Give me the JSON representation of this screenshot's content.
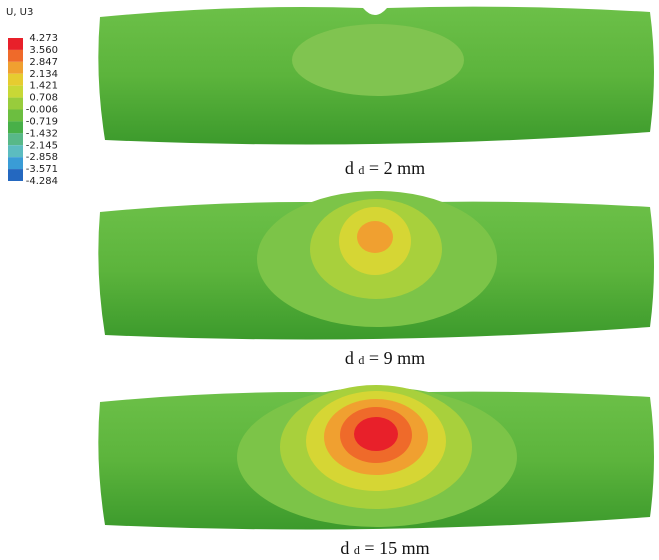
{
  "legend": {
    "title": "U, U3",
    "levels": [
      "4.273",
      "3.560",
      "2.847",
      "2.134",
      "1.421",
      "0.708",
      "-0.006",
      "-0.719",
      "-1.432",
      "-2.145",
      "-2.858",
      "-3.571",
      "-4.284"
    ],
    "colors": [
      "#e8202a",
      "#ef6a2a",
      "#f0a030",
      "#e6cc30",
      "#c8d836",
      "#98cc3c",
      "#6cbe40",
      "#48b048",
      "#58b888",
      "#5cbcc0",
      "#3a9cd6",
      "#2468c0"
    ]
  },
  "panels": [
    {
      "symbol": "d",
      "subscript": "d",
      "text": " = 2 mm"
    },
    {
      "symbol": "d",
      "subscript": "d",
      "text": " = 9 mm"
    },
    {
      "symbol": "d",
      "subscript": "d",
      "text": " = 15 mm"
    }
  ]
}
